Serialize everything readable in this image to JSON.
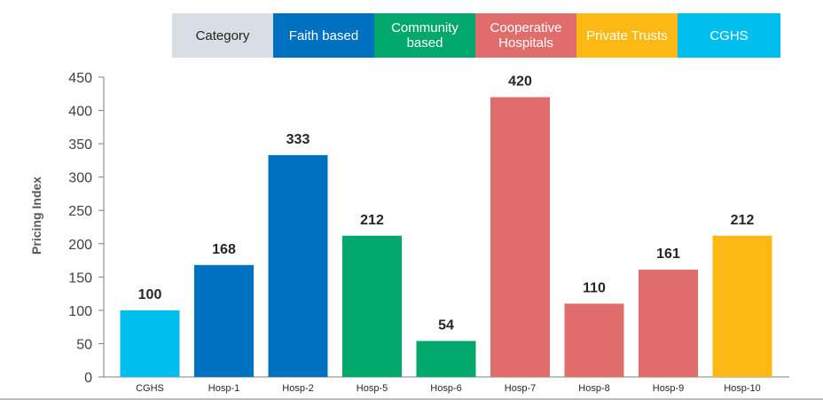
{
  "legend": {
    "items": [
      {
        "label": "Category",
        "color": "#d9dee5",
        "text_color": "#222222"
      },
      {
        "label": "Faith based",
        "color": "#0070c0",
        "text_color": "#ffffff"
      },
      {
        "label": "Community based",
        "color": "#00a86b",
        "text_color": "#ffffff"
      },
      {
        "label": "Cooperative Hospitals",
        "color": "#e06c6c",
        "text_color": "#ffffff"
      },
      {
        "label": "Private Trusts",
        "color": "#fdb913",
        "text_color": "#ffffff"
      },
      {
        "label": "CGHS",
        "color": "#00bfef",
        "text_color": "#ffffff"
      }
    ]
  },
  "chart_data": {
    "type": "bar",
    "title": "",
    "xlabel": "",
    "ylabel": "Pricing Index",
    "ylim": [
      0,
      450
    ],
    "yticks": [
      0,
      50,
      100,
      150,
      200,
      250,
      300,
      350,
      400,
      450
    ],
    "categories": [
      "CGHS",
      "Hosp-1",
      "Hosp-2",
      "Hosp-5",
      "Hosp-6",
      "Hosp-7",
      "Hosp-8",
      "Hosp-9",
      "Hosp-10"
    ],
    "values": [
      100,
      168,
      333,
      212,
      54,
      420,
      110,
      161,
      212
    ],
    "bar_colors": [
      "#00bfef",
      "#0070c0",
      "#0070c0",
      "#00a86b",
      "#00a86b",
      "#e06c6c",
      "#e06c6c",
      "#e06c6c",
      "#fdb913"
    ],
    "grid": false
  }
}
